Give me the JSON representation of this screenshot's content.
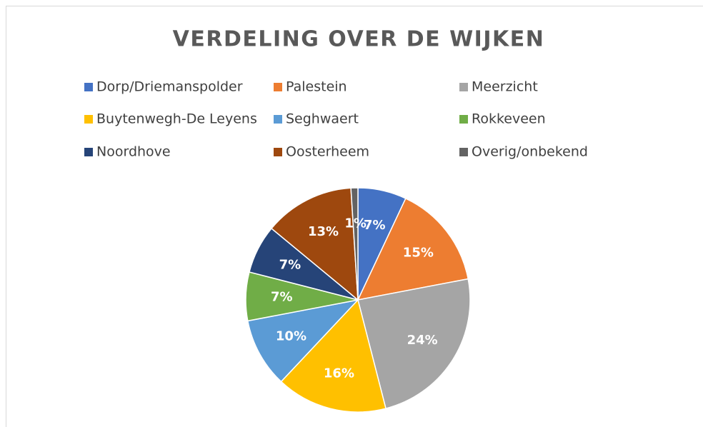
{
  "chart_data": {
    "type": "pie",
    "title": "VERDELING OVER DE WIJKEN",
    "categories": [
      "Dorp/Driemanspolder",
      "Palestein",
      "Meerzicht",
      "Buytenwegh-De Leyens",
      "Seghwaert",
      "Rokkeveen",
      "Noordhove",
      "Oosterheem",
      "Overig/onbekend"
    ],
    "values": [
      7,
      15,
      24,
      16,
      10,
      7,
      7,
      13,
      1
    ],
    "value_labels": [
      "7%",
      "15%",
      "24%",
      "16%",
      "10%",
      "7%",
      "7%",
      "13%",
      "1%"
    ],
    "colors": [
      "#4472c4",
      "#ed7d31",
      "#a5a5a5",
      "#ffc000",
      "#5b9bd5",
      "#70ad47",
      "#264478",
      "#9e480e",
      "#636363"
    ],
    "legend": "top"
  }
}
